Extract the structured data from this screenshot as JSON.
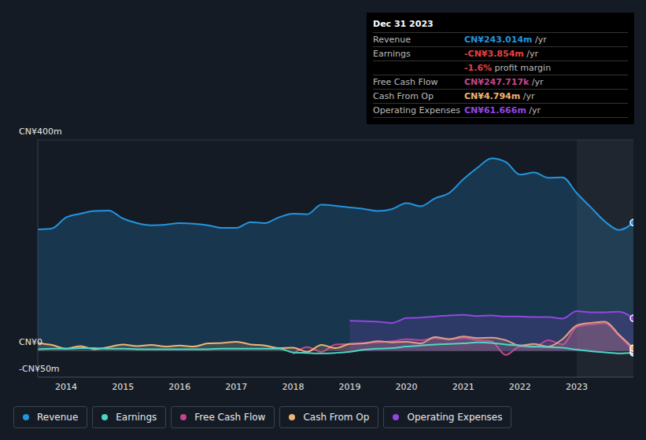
{
  "chart_data": {
    "type": "line",
    "x": [
      2013.5,
      2013.75,
      2014,
      2014.25,
      2014.5,
      2014.75,
      2015,
      2015.25,
      2015.5,
      2015.75,
      2016,
      2016.25,
      2016.5,
      2016.75,
      2017,
      2017.25,
      2017.5,
      2017.75,
      2018,
      2018.25,
      2018.5,
      2018.75,
      2019,
      2019.25,
      2019.5,
      2019.75,
      2020,
      2020.25,
      2020.5,
      2020.75,
      2021,
      2021.25,
      2021.5,
      2021.75,
      2022,
      2022.25,
      2022.5,
      2022.75,
      2023,
      2023.25,
      2023.5,
      2023.75,
      2024
    ],
    "xlim": [
      2013.5,
      2024
    ],
    "xticks": [
      2014,
      2015,
      2016,
      2017,
      2018,
      2019,
      2020,
      2021,
      2022,
      2023
    ],
    "ylim": [
      -50,
      400
    ],
    "yticks": [
      {
        "value": -50,
        "label": "-CN¥50m"
      },
      {
        "value": 0,
        "label": "CN¥0"
      },
      {
        "value": 400,
        "label": "CN¥400m"
      }
    ],
    "grid": true,
    "legend": "bottom",
    "series": [
      {
        "name": "Revenue",
        "color": "#2394df",
        "type": "area",
        "values": [
          230,
          232,
          253,
          260,
          265,
          266,
          251,
          242,
          238,
          239,
          242,
          241,
          238,
          233,
          233,
          244,
          242,
          253,
          260,
          259,
          277,
          275,
          272,
          269,
          265,
          269,
          280,
          274,
          289,
          299,
          325,
          347,
          365,
          358,
          334,
          338,
          328,
          329,
          299,
          272,
          245,
          229,
          243.014
        ]
      },
      {
        "name": "Earnings",
        "color": "#4cd7c5",
        "type": "line",
        "values": [
          3,
          4,
          4,
          5,
          5,
          4,
          4,
          3,
          3,
          3,
          3,
          3,
          3,
          4,
          4,
          4,
          4,
          4,
          -3,
          -4,
          -5,
          -4,
          -2,
          2,
          4,
          5,
          8,
          10,
          12,
          13,
          14,
          16,
          15,
          12,
          10,
          8,
          7,
          6,
          2,
          -1,
          -3,
          -5,
          -3.854
        ]
      },
      {
        "name": "Free Cash Flow",
        "color": "#c3468a",
        "type": "area",
        "values": [
          null,
          null,
          null,
          null,
          null,
          null,
          null,
          null,
          null,
          null,
          null,
          null,
          null,
          null,
          null,
          null,
          null,
          null,
          -6,
          7,
          -2,
          12,
          13,
          15,
          16,
          18,
          22,
          20,
          24,
          22,
          24,
          20,
          18,
          -8,
          8,
          7,
          20,
          12,
          45,
          50,
          52,
          28,
          0.247717
        ]
      },
      {
        "name": "Cash From Op",
        "color": "#f0b371",
        "type": "area",
        "values": [
          15,
          11,
          4,
          9,
          3,
          7,
          12,
          9,
          11,
          8,
          10,
          8,
          14,
          15,
          17,
          12,
          10,
          5,
          6,
          -2,
          11,
          5,
          13,
          14,
          18,
          16,
          17,
          14,
          26,
          22,
          27,
          24,
          25,
          20,
          10,
          13,
          8,
          22,
          48,
          53,
          55,
          30,
          4.794
        ]
      },
      {
        "name": "Operating Expenses",
        "color": "#9247e0",
        "type": "area",
        "values": [
          null,
          null,
          null,
          null,
          null,
          null,
          null,
          null,
          null,
          null,
          null,
          null,
          null,
          null,
          null,
          null,
          null,
          null,
          null,
          null,
          null,
          null,
          57,
          56,
          55,
          53,
          62,
          63,
          65,
          67,
          68,
          66,
          67,
          65,
          65,
          64,
          64,
          61,
          75,
          73,
          73,
          74,
          61.666
        ]
      }
    ],
    "tooltip": {
      "title": "Dec 31 2023",
      "rows": [
        {
          "label": "Revenue",
          "value": "CN¥243.014m",
          "unit": "/yr",
          "color": "#2394df"
        },
        {
          "label": "Earnings",
          "value": "-CN¥3.854m",
          "unit": "/yr",
          "color": "#e64141"
        },
        {
          "value": "-1.6%",
          "text": "profit margin",
          "color": "#e64141"
        },
        {
          "label": "Free Cash Flow",
          "value": "CN¥247.717k",
          "unit": "/yr",
          "color": "#c3468a"
        },
        {
          "label": "Cash From Op",
          "value": "CN¥4.794m",
          "unit": "/yr",
          "color": "#f0b371"
        },
        {
          "label": "Operating Expenses",
          "value": "CN¥61.666m",
          "unit": "/yr",
          "color": "#9247e0"
        }
      ]
    }
  }
}
